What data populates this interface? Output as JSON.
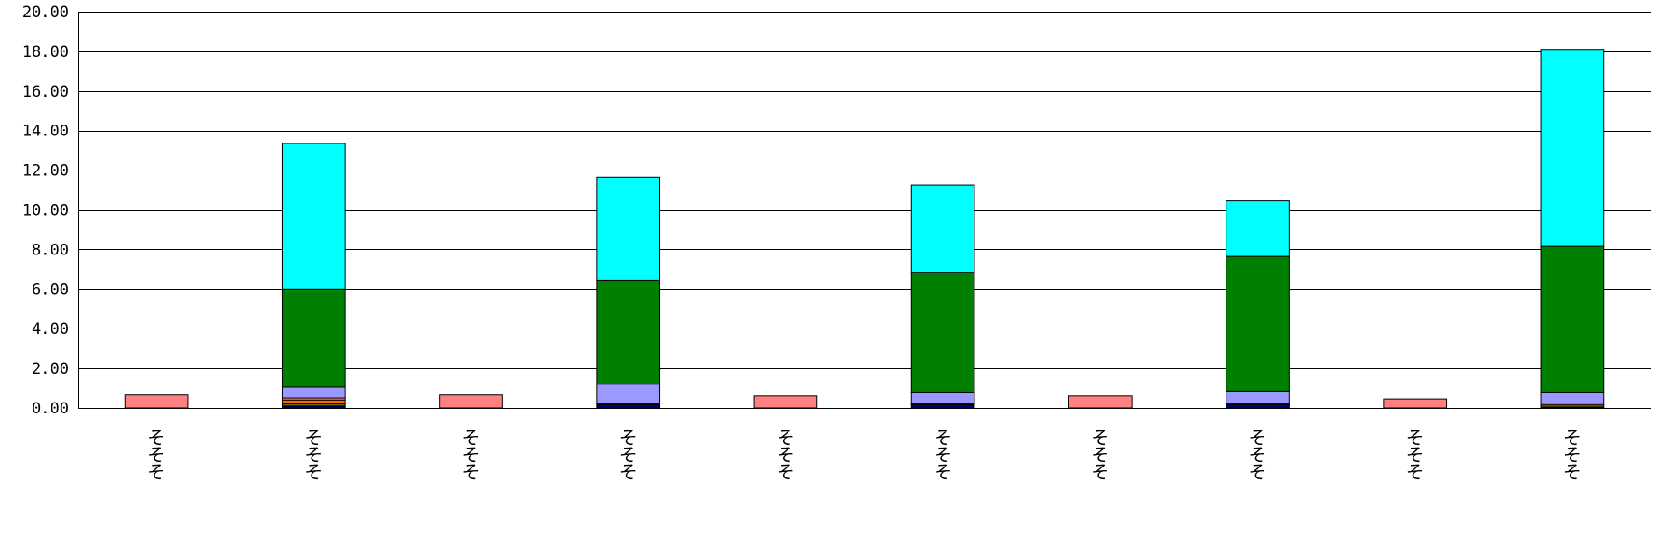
{
  "chart_data": {
    "type": "bar",
    "stacked": true,
    "title": "",
    "xlabel": "",
    "ylabel": "",
    "ylim": [
      0,
      20
    ],
    "yticks": [
      "0.00",
      "2.00",
      "4.00",
      "6.00",
      "8.00",
      "10.00",
      "12.00",
      "14.00",
      "16.00",
      "18.00",
      "20.00"
    ],
    "grid": true,
    "legend": "none",
    "categories": [
      "そそそ",
      "そそそ",
      "そそそ",
      "そそそ",
      "そそそ",
      "そそそ",
      "そそそ",
      "そそそ",
      "そそそ",
      "そそそ"
    ],
    "series": [
      {
        "color": "#000080",
        "values": [
          0,
          0.1,
          0,
          0.15,
          0,
          0.15,
          0,
          0.15,
          0,
          0.05
        ]
      },
      {
        "color": "#808000",
        "values": [
          0,
          0.1,
          0,
          0.05,
          0,
          0.05,
          0,
          0.05,
          0,
          0.1
        ]
      },
      {
        "color": "#ff6600",
        "values": [
          0,
          0.2,
          0,
          0.05,
          0,
          0.05,
          0,
          0.05,
          0,
          0.1
        ]
      },
      {
        "color": "#ff8080",
        "values": [
          0.65,
          0.1,
          0.65,
          0,
          0.6,
          0,
          0.6,
          0,
          0.45,
          0
        ]
      },
      {
        "color": "#9999ff",
        "values": [
          0,
          0.55,
          0,
          0.95,
          0,
          0.55,
          0,
          0.6,
          0,
          0.55
        ]
      },
      {
        "color": "#008000",
        "values": [
          0,
          4.95,
          0,
          5.25,
          0,
          6.05,
          0,
          6.8,
          0,
          7.35
        ]
      },
      {
        "color": "#00ffff",
        "values": [
          0,
          7.35,
          0,
          5.2,
          0,
          4.4,
          0,
          2.8,
          0,
          9.95
        ]
      }
    ],
    "colors": {
      "gridline": "#000000",
      "bar_outline": "#000000",
      "background": "#ffffff"
    }
  }
}
